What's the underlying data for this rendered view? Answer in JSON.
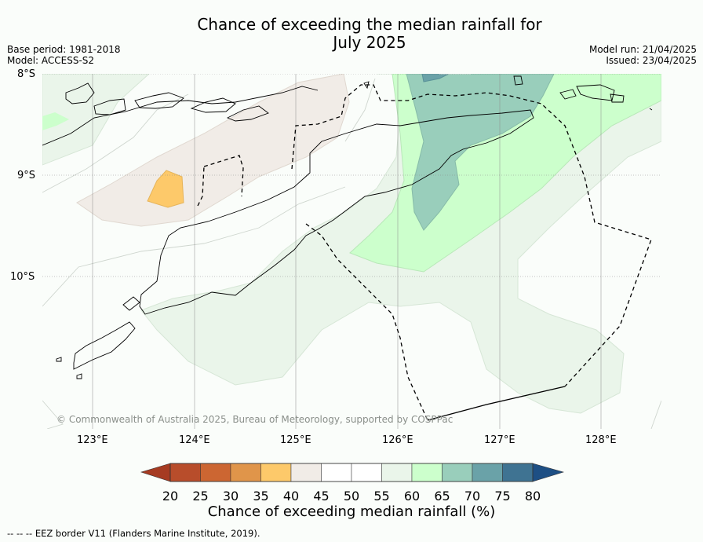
{
  "header": {
    "title_line1": "Chance of exceeding the median rainfall for",
    "title_line2": "July 2025",
    "base_period": "Base period: 1981-2018",
    "model": "Model: ACCESS-S2",
    "model_run": "Model run: 21/04/2025",
    "issued": "Issued: 23/04/2025"
  },
  "map": {
    "lat_labels": [
      "8°S",
      "9°S",
      "10°S"
    ],
    "lon_labels": [
      "123°E",
      "124°E",
      "125°E",
      "126°E",
      "127°E",
      "128°E"
    ],
    "copyright": "© Commonwealth of Australia 2025, Bureau of Meteorology, supported by COSPPac"
  },
  "colorbar": {
    "ticks": [
      "20",
      "25",
      "30",
      "35",
      "40",
      "45",
      "50",
      "55",
      "60",
      "65",
      "70",
      "75",
      "80"
    ],
    "colors": [
      "#a63b22",
      "#b84d2b",
      "#cc6632",
      "#e0954a",
      "#fdc96a",
      "#f1ece7",
      "#ffffff",
      "#ffffff",
      "#eaf5ea",
      "#ccffcc",
      "#99cebb",
      "#6aa2a8",
      "#3f7392",
      "#1d4f84"
    ],
    "title": "Chance of exceeding median rainfall (%)"
  },
  "footnote": "--  --  -- EEZ border V11 (Flanders Marine Institute, 2019)."
}
